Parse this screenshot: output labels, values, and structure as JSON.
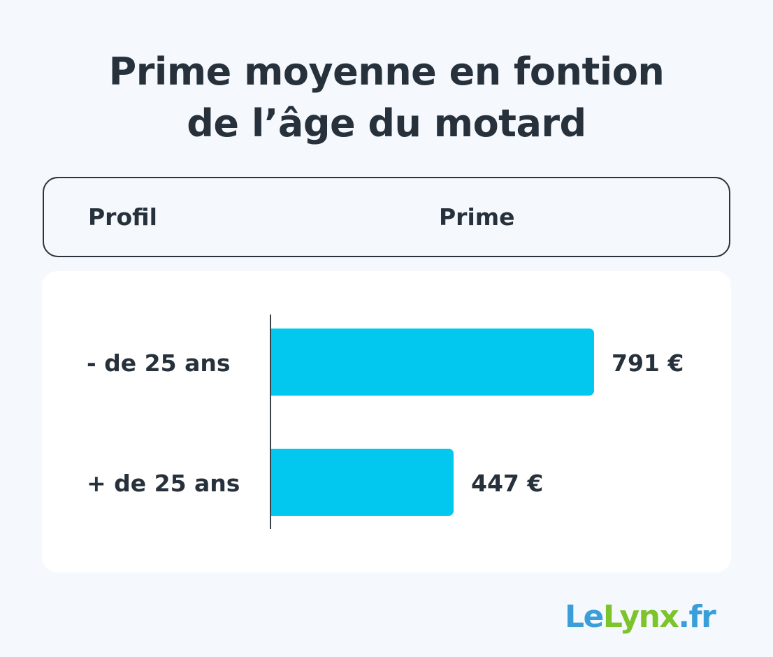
{
  "title": {
    "line1": "Prime moyenne en fontion",
    "line2": "de l’âge du motard"
  },
  "table_header": {
    "col1": "Profil",
    "col2": "Prime"
  },
  "rows": [
    {
      "label": "- de 25 ans",
      "value": 791,
      "value_label": "791 €"
    },
    {
      "label": "+ de 25 ans",
      "value": 447,
      "value_label": "447 €"
    }
  ],
  "colors": {
    "bar": "#02c8f0",
    "text": "#27313b",
    "background": "#f5f9fe",
    "card": "#ffffff",
    "logo_blue": "#3a9fd8",
    "logo_green": "#7dc42b"
  },
  "logo": {
    "part1": "Le",
    "part2": "Lynx",
    "part3": ".fr"
  },
  "chart_data": {
    "type": "bar",
    "orientation": "horizontal",
    "title": "Prime moyenne en fontion de l’âge du motard",
    "categories": [
      "- de 25 ans",
      "+ de 25 ans"
    ],
    "values": [
      791,
      447
    ],
    "unit": "€",
    "xlabel": "Prime",
    "ylabel": "Profil",
    "data_labels": [
      "791 €",
      "447 €"
    ],
    "grid": false,
    "legend": "none"
  }
}
